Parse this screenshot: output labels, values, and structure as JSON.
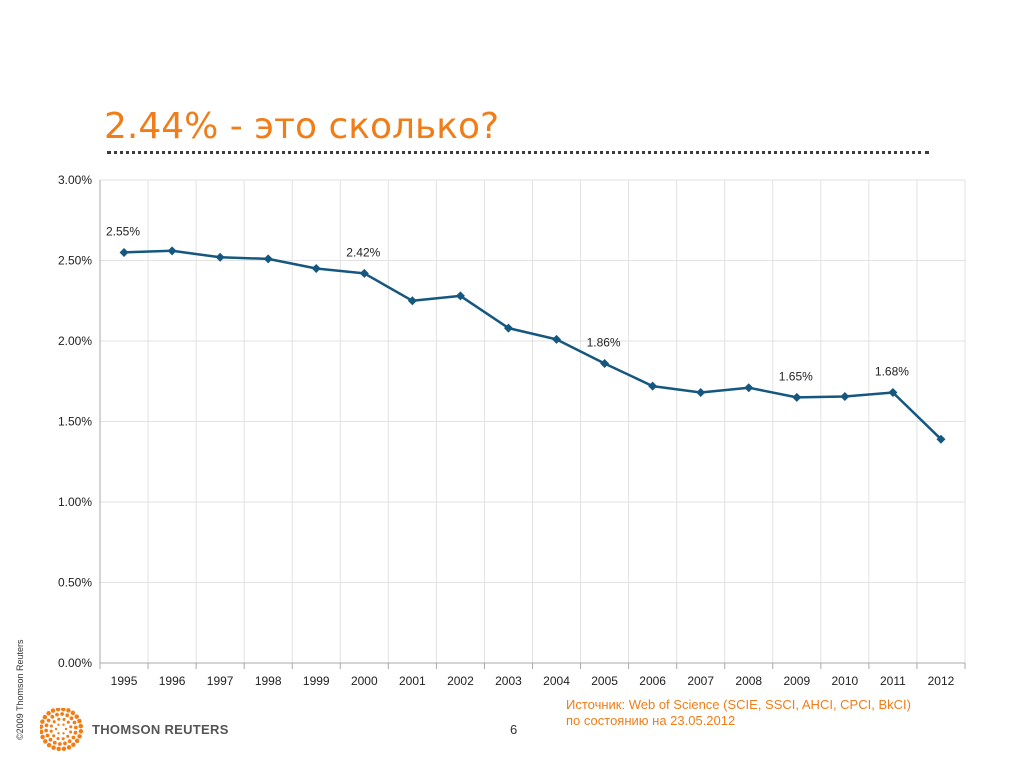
{
  "slide": {
    "title": "2.44% - это сколько?",
    "page_number": "6",
    "copyright": "©2009 Thomson Reuters",
    "logo_text": "THOMSON REUTERS",
    "source_line1": "Источник: Web of Science (SCIE, SSCI, AHCI, CPCI, BkCI)",
    "source_line2": "по состоянию на 23.05.2012"
  },
  "colors": {
    "title": "#f07d18",
    "series": "#15577f",
    "grid": "#e2e2e2",
    "axis": "#a8a8a8",
    "logo": "#f07d18"
  },
  "chart_data": {
    "type": "line",
    "title": "",
    "xlabel": "",
    "ylabel": "",
    "categories": [
      "1995",
      "1996",
      "1997",
      "1998",
      "1999",
      "2000",
      "2001",
      "2002",
      "2003",
      "2004",
      "2005",
      "2006",
      "2007",
      "2008",
      "2009",
      "2010",
      "2011",
      "2012"
    ],
    "series": [
      {
        "values": [
          2.55,
          2.56,
          2.52,
          2.51,
          2.45,
          2.42,
          2.25,
          2.28,
          2.08,
          2.01,
          1.86,
          1.72,
          1.68,
          1.71,
          1.65,
          1.655,
          1.68,
          1.39
        ],
        "marker": "diamond"
      }
    ],
    "data_labels": [
      {
        "category": "1995",
        "text": "2.55%"
      },
      {
        "category": "2000",
        "text": "2.42%"
      },
      {
        "category": "2005",
        "text": "1.86%"
      },
      {
        "category": "2009",
        "text": "1.65%"
      },
      {
        "category": "2011",
        "text": "1.68%"
      }
    ],
    "ylim": [
      0,
      3
    ],
    "yticks": [
      "0.00%",
      "0.50%",
      "1.00%",
      "1.50%",
      "2.00%",
      "2.50%",
      "3.00%"
    ],
    "grid": true,
    "legend": "none"
  }
}
